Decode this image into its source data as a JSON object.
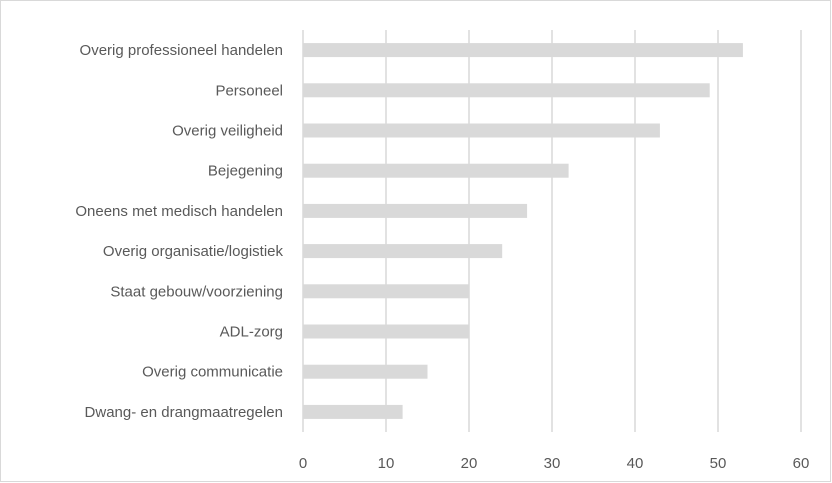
{
  "chart_data": {
    "type": "bar",
    "orientation": "horizontal",
    "title": "",
    "xlabel": "",
    "ylabel": "",
    "categories": [
      "Overig professioneel handelen",
      "Personeel",
      "Overig veiligheid",
      "Bejegening",
      "Oneens met medisch handelen",
      "Overig organisatie/logistiek",
      "Staat gebouw/voorziening",
      "ADL-zorg",
      "Overig communicatie",
      "Dwang- en drangmaatregelen"
    ],
    "values": [
      53,
      49,
      43,
      32,
      27,
      24,
      20,
      20,
      15,
      12
    ],
    "xlim": [
      0,
      60
    ],
    "xticks": [
      "0",
      "10",
      "20",
      "30",
      "40",
      "50",
      "60"
    ],
    "grid": "vertical",
    "legend": "none",
    "colors": {
      "bar": "#d9d9d9",
      "grid": "#d9d9d9",
      "text": "#595959"
    }
  }
}
